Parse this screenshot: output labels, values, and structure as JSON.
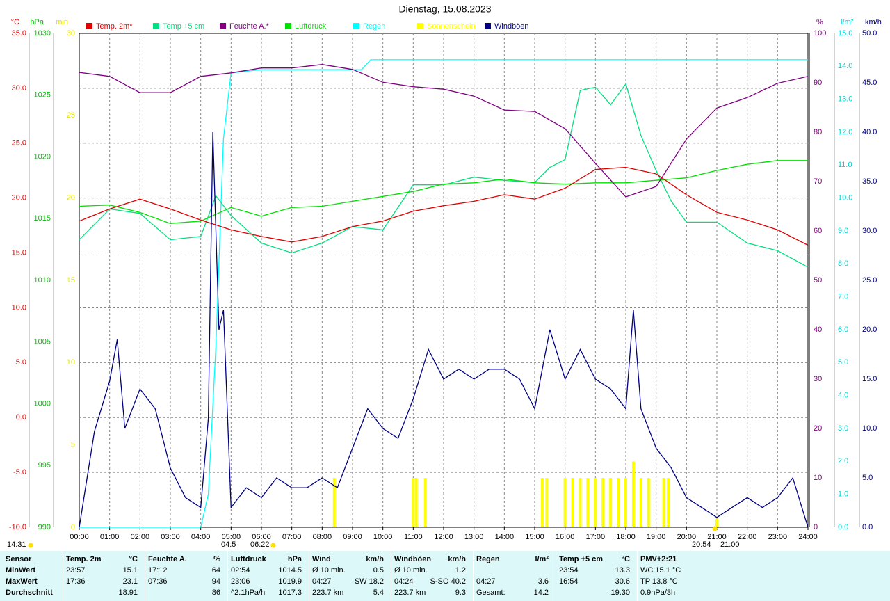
{
  "chart_data": {
    "type": "line",
    "title": "Dienstag, 15.08.2023",
    "xlim": [
      0,
      24
    ],
    "xticks": [
      {
        "value": 0,
        "label": "00:00"
      },
      {
        "value": 1,
        "label": "01:00"
      },
      {
        "value": 2,
        "label": "02:00"
      },
      {
        "value": 3,
        "label": "03:00"
      },
      {
        "value": 4,
        "label": "04:00"
      },
      {
        "value": 5,
        "label": "05:00"
      },
      {
        "value": 6,
        "label": "06:00"
      },
      {
        "value": 7,
        "label": "07:00"
      },
      {
        "value": 8,
        "label": "08:00"
      },
      {
        "value": 9,
        "label": "09:00"
      },
      {
        "value": 10,
        "label": "10:00"
      },
      {
        "value": 11,
        "label": "11:00"
      },
      {
        "value": 12,
        "label": "12:00"
      },
      {
        "value": 13,
        "label": "13:00"
      },
      {
        "value": 14,
        "label": "14:00"
      },
      {
        "value": 15,
        "label": "15:00"
      },
      {
        "value": 16,
        "label": "16:00"
      },
      {
        "value": 17,
        "label": "17:00"
      },
      {
        "value": 18,
        "label": "18:00"
      },
      {
        "value": 19,
        "label": "19:00"
      },
      {
        "value": 20,
        "label": "20:00"
      },
      {
        "value": 21,
        "label": "21:00"
      },
      {
        "value": 22,
        "label": "22:00"
      },
      {
        "value": 23,
        "label": "23:00"
      },
      {
        "value": 24,
        "label": "24:00"
      }
    ],
    "grid": true,
    "axes": [
      {
        "label": "°C",
        "color": "#e00000",
        "ylim": [
          -10,
          35
        ],
        "yticks": [
          {
            "value": -10,
            "label": "-10.0"
          },
          {
            "value": -5,
            "label": "-5.0"
          },
          {
            "value": 0,
            "label": "0.0"
          },
          {
            "value": 5,
            "label": "5.0"
          },
          {
            "value": 10,
            "label": "10.0"
          },
          {
            "value": 15,
            "label": "15.0"
          },
          {
            "value": 20,
            "label": "20.0"
          },
          {
            "value": 25,
            "label": "25.0"
          },
          {
            "value": 30,
            "label": "30.0"
          },
          {
            "value": 35,
            "label": "35.0"
          }
        ]
      },
      {
        "label": "hPa",
        "color": "#00c000",
        "ylim": [
          990,
          1030
        ],
        "yticks": [
          990,
          995,
          1000,
          1005,
          1010,
          1015,
          1020,
          1025,
          1030
        ]
      },
      {
        "label": "min",
        "color": "#e0e000",
        "ylim": [
          0,
          30
        ],
        "yticks": [
          0,
          5,
          10,
          15,
          20,
          25,
          30
        ]
      },
      {
        "label": "%",
        "color": "#800080",
        "ylim": [
          0,
          100
        ],
        "yticks": [
          0,
          10,
          20,
          30,
          40,
          50,
          60,
          70,
          80,
          90,
          100
        ]
      },
      {
        "label": "l/m²",
        "color": "#00d0d0",
        "ylim": [
          0,
          15
        ],
        "yticks": [
          {
            "value": 0,
            "label": "0.0"
          },
          {
            "value": 1,
            "label": "1.0"
          },
          {
            "value": 2,
            "label": "2.0"
          },
          {
            "value": 3,
            "label": "3.0"
          },
          {
            "value": 4,
            "label": "4.0"
          },
          {
            "value": 5,
            "label": "5.0"
          },
          {
            "value": 6,
            "label": "6.0"
          },
          {
            "value": 7,
            "label": "7.0"
          },
          {
            "value": 8,
            "label": "8.0"
          },
          {
            "value": 9,
            "label": "9.0"
          },
          {
            "value": 10,
            "label": "10.0"
          },
          {
            "value": 11,
            "label": "11.0"
          },
          {
            "value": 12,
            "label": "12.0"
          },
          {
            "value": 13,
            "label": "13.0"
          },
          {
            "value": 14,
            "label": "14.0"
          },
          {
            "value": 15,
            "label": "15.0"
          }
        ]
      },
      {
        "label": "km/h",
        "color": "#000080",
        "ylim": [
          0,
          50
        ],
        "yticks": [
          {
            "value": 0,
            "label": "0.0"
          },
          {
            "value": 5,
            "label": "5.0"
          },
          {
            "value": 10,
            "label": "10.0"
          },
          {
            "value": 15,
            "label": "15.0"
          },
          {
            "value": 20,
            "label": "20.0"
          },
          {
            "value": 25,
            "label": "25.0"
          },
          {
            "value": 30,
            "label": "30.0"
          },
          {
            "value": 35,
            "label": "35.0"
          },
          {
            "value": 40,
            "label": "40.0"
          },
          {
            "value": 45,
            "label": "45.0"
          },
          {
            "value": 50,
            "label": "50.0"
          }
        ]
      }
    ],
    "series": [
      {
        "name": "Temp. 2m*",
        "color": "#e00000",
        "axis": 0,
        "style": "line",
        "x": [
          0,
          1,
          2,
          3,
          4,
          5,
          6,
          7,
          8,
          9,
          10,
          11,
          12,
          13,
          14,
          15,
          16,
          17,
          18,
          19,
          20,
          21,
          22,
          23,
          24
        ],
        "values": [
          17.9,
          19.0,
          19.9,
          19.0,
          18.0,
          17.1,
          16.5,
          16.0,
          16.5,
          17.4,
          17.9,
          18.8,
          19.3,
          19.7,
          20.3,
          19.9,
          20.9,
          22.6,
          22.8,
          22.2,
          20.3,
          18.7,
          18.0,
          17.1,
          15.7
        ]
      },
      {
        "name": "Temp +5 cm",
        "color": "#00e080",
        "axis": 0,
        "style": "line",
        "x": [
          0,
          1,
          2,
          3,
          4,
          4.5,
          5,
          6,
          7,
          8,
          9,
          10,
          11,
          12,
          13,
          14,
          15,
          15.5,
          16,
          16.5,
          17,
          17.5,
          18,
          18.5,
          19,
          19.5,
          20,
          21,
          22,
          23,
          24
        ],
        "values": [
          16.2,
          19.0,
          18.6,
          16.2,
          16.5,
          20.2,
          18.4,
          15.9,
          15.0,
          15.9,
          17.4,
          17.1,
          21.2,
          21.2,
          21.9,
          21.6,
          21.4,
          22.8,
          23.5,
          29.8,
          30.1,
          28.5,
          30.4,
          25.7,
          22.5,
          19.7,
          17.8,
          17.8,
          15.9,
          15.2,
          13.7
        ]
      },
      {
        "name": "Feuchte A.*",
        "color": "#800080",
        "axis": 3,
        "style": "line",
        "x": [
          0,
          1,
          2,
          3,
          4,
          5,
          6,
          7,
          8,
          9,
          10,
          11,
          12,
          13,
          14,
          15,
          16,
          17,
          18,
          19,
          20,
          21,
          22,
          23,
          24
        ],
        "values": [
          92.1,
          91.3,
          88.0,
          88.0,
          91.3,
          92.0,
          93.0,
          93.0,
          93.7,
          92.7,
          90.1,
          89.2,
          88.7,
          87.3,
          84.5,
          84.2,
          80.7,
          73.7,
          66.9,
          69.0,
          78.6,
          84.9,
          87.0,
          89.9,
          91.3
        ]
      },
      {
        "name": "Luftdruck",
        "color": "#00e000",
        "axis": 1,
        "style": "line",
        "x": [
          0,
          1,
          2,
          3,
          4,
          5,
          6,
          7,
          8,
          9,
          10,
          11,
          12,
          13,
          14,
          15,
          16,
          17,
          18,
          19,
          20,
          21,
          22,
          23,
          24
        ],
        "values": [
          1016.0,
          1016.1,
          1015.5,
          1014.6,
          1014.8,
          1015.9,
          1015.2,
          1015.9,
          1016.0,
          1016.4,
          1016.8,
          1017.2,
          1017.8,
          1017.9,
          1018.2,
          1017.9,
          1017.8,
          1017.9,
          1017.9,
          1018.1,
          1018.3,
          1018.9,
          1019.4,
          1019.7,
          1019.7
        ]
      },
      {
        "name": "Regen",
        "color": "#00ffff",
        "axis": 4,
        "style": "line",
        "x": [
          0,
          4,
          4.25,
          4.5,
          4.75,
          5,
          6,
          8,
          9.3,
          9.6,
          10,
          24
        ],
        "values": [
          0,
          0,
          1.0,
          5.5,
          11.8,
          13.8,
          13.9,
          13.9,
          13.9,
          14.2,
          14.2,
          14.2
        ]
      },
      {
        "name": "Sonnenschein",
        "color": "#ffff00",
        "axis": 2,
        "style": "bar",
        "x": [
          8.4,
          11.0,
          11.1,
          11.4,
          15.25,
          15.4,
          16.0,
          16.25,
          16.5,
          16.75,
          17.0,
          17.25,
          17.5,
          17.75,
          18.0,
          18.25,
          18.5,
          18.75,
          19.25,
          19.4,
          21.0
        ],
        "values": [
          3,
          3,
          3,
          3,
          3,
          3,
          3,
          3,
          3,
          3,
          3,
          3,
          3,
          3,
          3,
          4,
          3,
          3,
          3,
          3,
          0.5
        ]
      },
      {
        "name": "Windböen",
        "color": "#000080",
        "axis": 5,
        "style": "line",
        "x": [
          0,
          0.5,
          1,
          1.25,
          1.5,
          2,
          2.5,
          3,
          3.5,
          4,
          4.25,
          4.4,
          4.6,
          4.75,
          5,
          5.5,
          6,
          6.5,
          7,
          7.5,
          8,
          8.5,
          9,
          9.5,
          10,
          10.5,
          11,
          11.5,
          12,
          12.5,
          13,
          13.5,
          14,
          14.5,
          15,
          15.5,
          16,
          16.5,
          17,
          17.5,
          18,
          18.25,
          18.5,
          19,
          19.5,
          20,
          20.5,
          21,
          21.5,
          22,
          22.5,
          23,
          23.5,
          24
        ],
        "values": [
          0,
          9.7,
          14.8,
          19,
          10,
          14,
          12,
          6,
          3,
          2,
          11,
          40,
          20,
          22,
          2,
          4,
          3,
          5,
          4,
          4,
          5,
          4,
          8,
          12,
          10,
          9,
          13,
          18,
          15,
          16,
          15,
          16,
          16,
          15,
          12,
          20,
          15,
          18,
          15,
          14,
          12,
          22,
          12,
          8,
          6,
          3,
          2,
          1,
          2,
          3,
          2,
          3,
          5,
          0
        ]
      }
    ],
    "annotations": [
      "14:31",
      "04:5",
      "06:22",
      "20:54",
      "21:00"
    ]
  },
  "table": {
    "header": {
      "label": "Sensor",
      "cells": [
        [
          "Temp. 2m",
          "°C"
        ],
        [
          "Feuchte A.",
          "%"
        ],
        [
          "Luftdruck",
          "hPa"
        ],
        [
          "Wind",
          "km/h"
        ],
        [
          "Windböen",
          "km/h"
        ],
        [
          "Regen",
          "l/m²"
        ],
        [
          "Temp +5 cm",
          "°C"
        ],
        [
          "PMV+2:21"
        ]
      ]
    },
    "rows": [
      {
        "label": "MinWert",
        "cells": [
          [
            "23:57",
            "15.1"
          ],
          [
            "17:12",
            "64"
          ],
          [
            "02:54",
            "1014.5"
          ],
          [
            "Ø 10 min.",
            "0.5"
          ],
          [
            "Ø 10 min.",
            "1.2"
          ],
          [],
          [
            "23:54",
            "13.3"
          ],
          [
            "WC 15.1 °C"
          ]
        ]
      },
      {
        "label": "MaxWert",
        "cells": [
          [
            "17:36",
            "23.1"
          ],
          [
            "07:36",
            "94"
          ],
          [
            "23:06",
            "1019.9"
          ],
          [
            "04:27",
            "SW 18.2"
          ],
          [
            "04:24",
            "S-SO 40.2"
          ],
          [
            "04:27",
            "3.6"
          ],
          [
            "16:54",
            "30.6"
          ],
          [
            "TP 13.8 °C"
          ]
        ]
      },
      {
        "label": "Durchschnitt",
        "cells": [
          [
            "",
            "18.91"
          ],
          [
            "",
            "86"
          ],
          [
            "^2.1hPa/h",
            "1017.3"
          ],
          [
            "223.7 km",
            "5.4"
          ],
          [
            "223.7 km",
            "9.3"
          ],
          [
            "Gesamt:",
            "14.2"
          ],
          [
            "",
            "19.30"
          ],
          [
            "0.9hPa/3h"
          ]
        ]
      }
    ]
  }
}
